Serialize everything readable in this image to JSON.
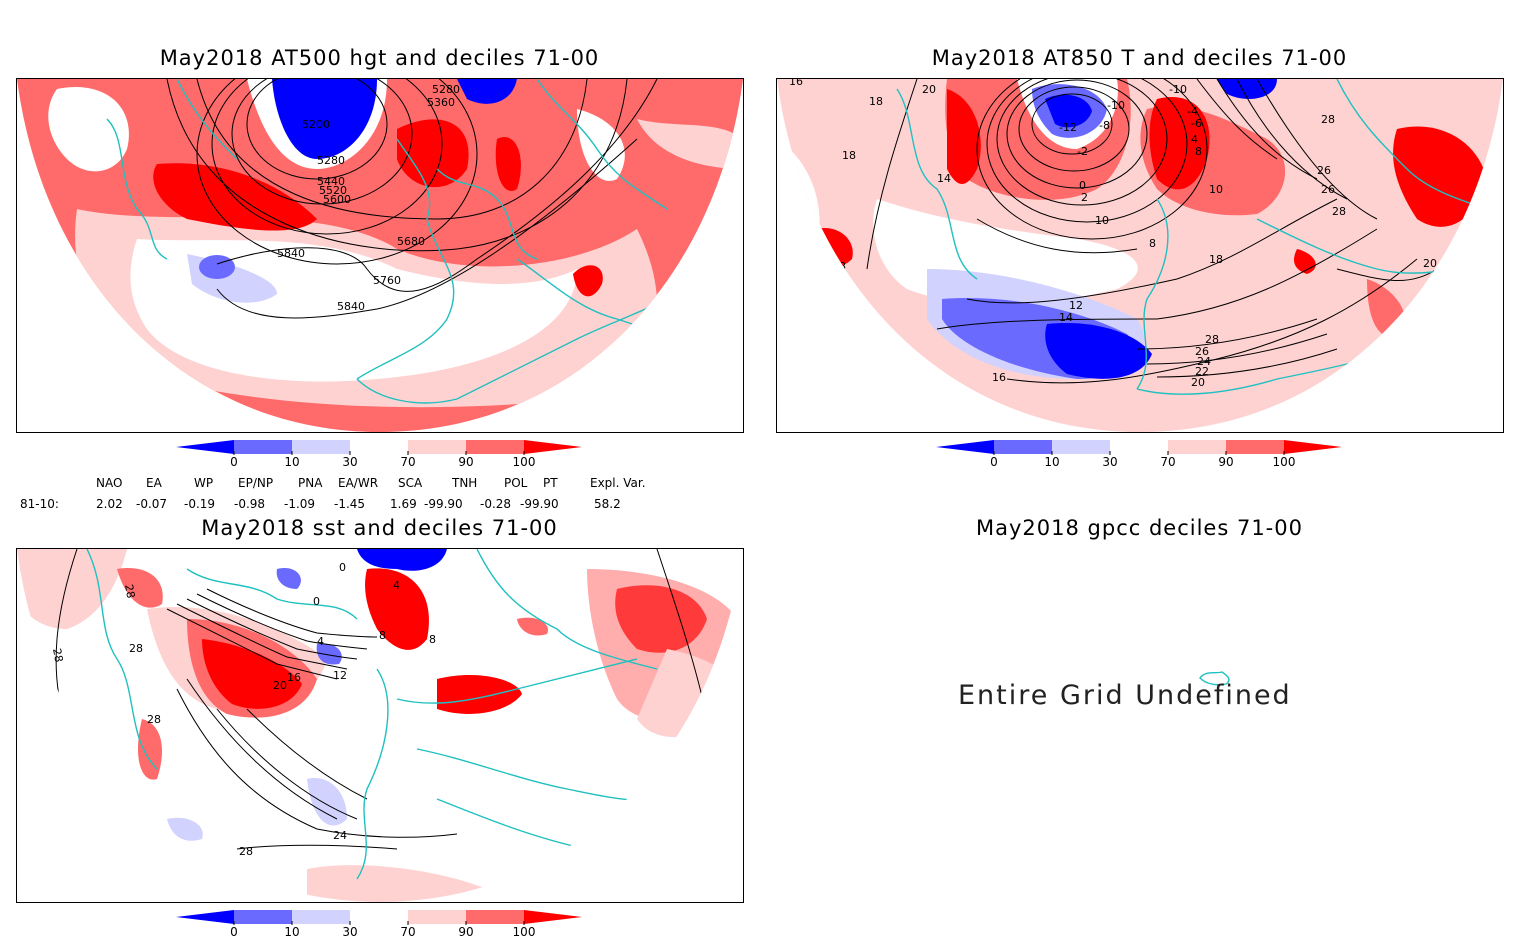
{
  "panels": {
    "hgt": {
      "title": "May2018 AT500 hgt and deciles 71-00",
      "contour_labels": [
        "5280",
        "5360",
        "5200",
        "5280",
        "5440",
        "5520",
        "5600",
        "5680",
        "5840",
        "5760",
        "5840"
      ]
    },
    "t850": {
      "title": "May2018 AT850 T and deciles 71-00",
      "contour_labels": [
        "16",
        "18",
        "20",
        "18",
        "14",
        "-12",
        "-8",
        "-10",
        "-2",
        "0",
        "2",
        "-10",
        "-4",
        "-6",
        "4",
        "8",
        "10",
        "28",
        "26",
        "26",
        "28",
        "10",
        "8",
        "18",
        "18",
        "20",
        "18",
        "12",
        "14",
        "16",
        "28",
        "26",
        "24",
        "22",
        "20",
        "16"
      ]
    },
    "sst": {
      "title": "May2018 sst and deciles 71-00",
      "contour_labels": [
        "28",
        "28",
        "28",
        "28",
        "0",
        "0",
        "4",
        "8",
        "4",
        "8",
        "12",
        "16",
        "20",
        "24",
        "28"
      ]
    },
    "gpcc": {
      "title": "May2018 gpcc deciles 71-00",
      "message": "Entire Grid Undefined"
    }
  },
  "colorbar": {
    "ticks": [
      "0",
      "10",
      "30",
      "70",
      "90",
      "100"
    ],
    "colors": [
      "#0000ff",
      "#6a6aff",
      "#d2d2ff",
      "#ffffff",
      "#ffd2d2",
      "#ff6a6a",
      "#ff0000"
    ]
  },
  "teleconnections": {
    "headers": [
      "NAO",
      "EA",
      "WP",
      "EP/NP",
      "PNA",
      "EA/WR",
      "SCA",
      "TNH",
      "POL",
      "PT",
      "Expl. Var."
    ],
    "row_label": "81-10:",
    "values": [
      "2.02",
      "-0.07",
      "-0.19",
      "-0.98",
      "-1.09",
      "-1.45",
      "1.69",
      "-99.90",
      "-0.28",
      "-99.90",
      "58.2"
    ]
  },
  "colors": {
    "coast": "#20c0c0",
    "strong_pos": "#ff0000",
    "pos": "#ff6a6a",
    "weak_pos": "#ffd2d2",
    "weak_neg": "#d2d2ff",
    "neg": "#6a6aff",
    "strong_neg": "#0000ff"
  }
}
